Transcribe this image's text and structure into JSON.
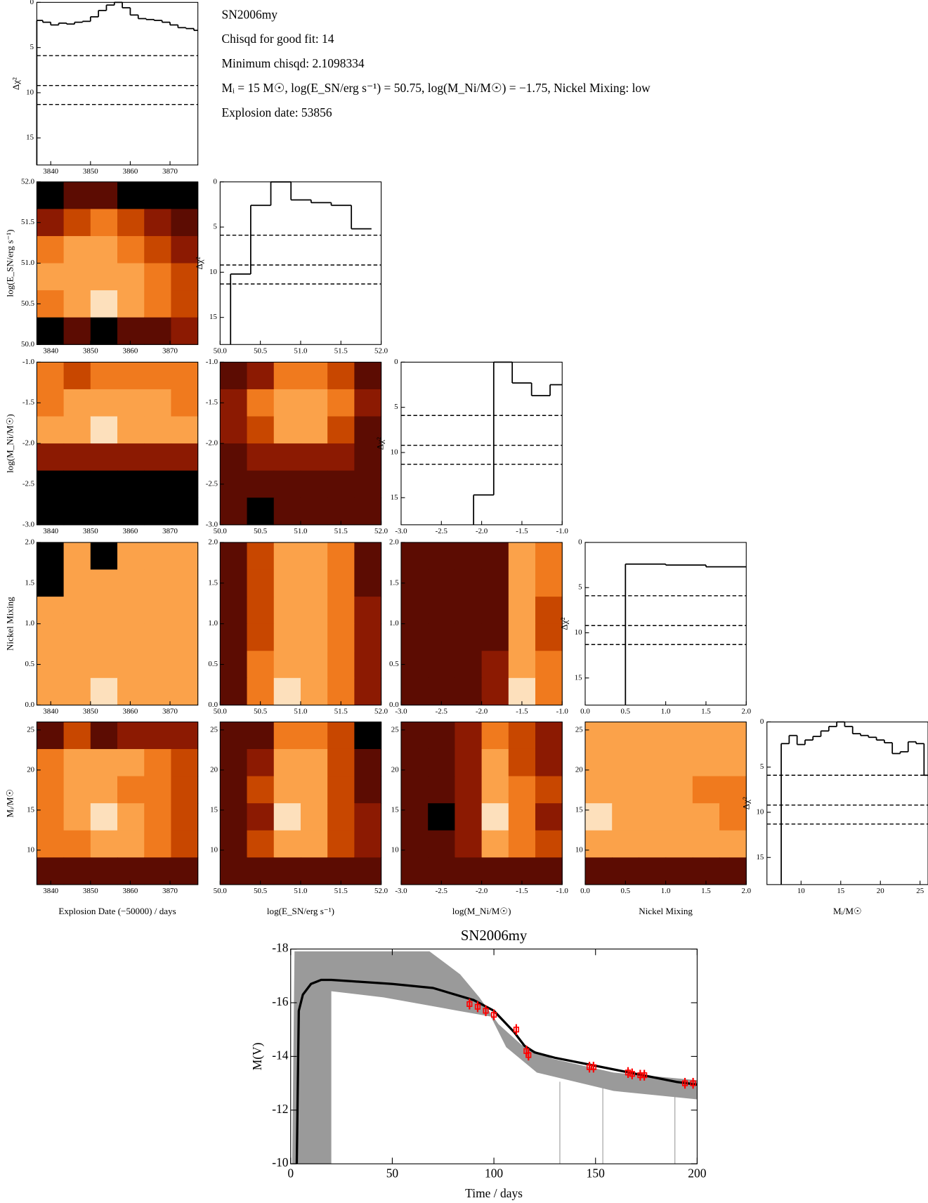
{
  "chart_data": [
    {
      "type": "corner",
      "info_lines": [
        "SN2006my",
        "Chisqd for good fit: 14",
        "Minimum chisqd: 2.1098334",
        "Mᵢ = 15 M☉, log(E_SN/erg s⁻¹) = 50.75, log(M_Ni/M☉) = −1.75, Nickel Mixing: low",
        "Explosion date: 53856"
      ],
      "level_colors": [
        "#000000",
        "#5c0c02",
        "#8c1a02",
        "#c84700",
        "#f07a1e",
        "#fba24a",
        "#fde0bc"
      ],
      "hist_ylabel": "Δχ²",
      "hist_ylim": [
        0,
        18
      ],
      "hist_yticks": [
        0,
        5,
        10,
        15
      ],
      "thresholds": [
        5.9,
        9.2,
        11.3
      ],
      "params": [
        {
          "label": "Explosion Date (−50000) / days",
          "lim": [
            3836.5,
            3877
          ],
          "ticks": [
            3840,
            3850,
            3860,
            3870
          ]
        },
        {
          "label": "log(E_SN/erg s⁻¹)",
          "lim": [
            50,
            52
          ],
          "ticks": [
            {
              "value": 50,
              "label": "50.0"
            },
            {
              "value": 50.5,
              "label": "50.5"
            },
            {
              "value": 51,
              "label": "51.0"
            },
            {
              "value": 51.5,
              "label": "51.5"
            },
            {
              "value": 52,
              "label": "52.0"
            }
          ]
        },
        {
          "label": "log(M_Ni/M☉)",
          "lim": [
            -3,
            -1
          ],
          "ticks": [
            {
              "value": -3,
              "label": "-3.0"
            },
            {
              "value": -2.5,
              "label": "-2.5"
            },
            {
              "value": -2,
              "label": "-2.0"
            },
            {
              "value": -1.5,
              "label": "-1.5"
            },
            {
              "value": -1,
              "label": "-1.0"
            }
          ]
        },
        {
          "label": "Nickel Mixing",
          "lim": [
            0,
            2
          ],
          "ticks": [
            {
              "value": 0,
              "label": "0.0"
            },
            {
              "value": 0.5,
              "label": "0.5"
            },
            {
              "value": 1,
              "label": "1.0"
            },
            {
              "value": 1.5,
              "label": "1.5"
            },
            {
              "value": 2,
              "label": "2.0"
            }
          ]
        },
        {
          "label": "Mᵢ/M☉",
          "lim": [
            5.7,
            26
          ],
          "ticks": [
            10,
            15,
            20,
            25
          ]
        }
      ],
      "hists": [
        {
          "bins": [
            3836.5,
            3838,
            3840,
            3842,
            3844,
            3846,
            3848,
            3850,
            3852,
            3854,
            3856,
            3858,
            3860,
            3862,
            3864,
            3866,
            3868,
            3870,
            3872,
            3874,
            3876,
            3877
          ],
          "values": [
            2.0,
            2.2,
            2.5,
            2.3,
            2.4,
            2.2,
            2.1,
            1.6,
            0.9,
            0.3,
            0,
            0.6,
            1.4,
            1.8,
            1.9,
            2.0,
            2.2,
            2.5,
            2.8,
            2.9,
            3.1
          ]
        },
        {
          "bins": [
            50.13,
            50.38,
            50.63,
            50.88,
            51.13,
            51.38,
            51.63,
            51.88
          ],
          "values": [
            10.2,
            2.6,
            0,
            2.0,
            2.3,
            2.6,
            5.2
          ]
        },
        {
          "bins": [
            -2.1,
            -1.85,
            -1.62,
            -1.38,
            -1.15,
            -1.0
          ],
          "values": [
            14.7,
            0,
            2.3,
            3.7,
            2.5
          ]
        },
        {
          "bins": [
            0.5,
            1.0,
            1.5,
            2.0
          ],
          "values": [
            2.4,
            2.5,
            2.7
          ]
        },
        {
          "bins": [
            7.5,
            8.5,
            9.5,
            10.5,
            11.5,
            12.5,
            13.5,
            14.5,
            15.5,
            16.5,
            17.5,
            18.5,
            19.5,
            20.5,
            21.5,
            22.5,
            23.5,
            24.5,
            25.5,
            26
          ],
          "values": [
            2.4,
            1.5,
            2.5,
            2.0,
            1.6,
            1.0,
            0.5,
            0,
            0.5,
            1.3,
            1.5,
            1.7,
            2.0,
            2.3,
            3.5,
            3.3,
            2.2,
            2.4,
            5.9
          ]
        }
      ],
      "contours": [
        [
          [
            0,
            1,
            1,
            0,
            0,
            0
          ],
          [
            2,
            3,
            4,
            3,
            2,
            1
          ],
          [
            4,
            5,
            5,
            4,
            3,
            2
          ],
          [
            5,
            5,
            5,
            5,
            4,
            3
          ],
          [
            4,
            5,
            6,
            5,
            4,
            3
          ],
          [
            0,
            1,
            0,
            1,
            1,
            2
          ]
        ],
        [
          [
            4,
            3,
            4,
            4,
            4,
            4
          ],
          [
            4,
            5,
            5,
            5,
            5,
            4
          ],
          [
            5,
            5,
            6,
            5,
            5,
            5
          ],
          [
            2,
            2,
            2,
            2,
            2,
            2
          ],
          [
            0,
            0,
            0,
            0,
            0,
            0
          ],
          [
            0,
            0,
            0,
            0,
            0,
            0
          ]
        ],
        [
          [
            1,
            2,
            4,
            4,
            3,
            1
          ],
          [
            2,
            4,
            5,
            5,
            4,
            2
          ],
          [
            2,
            3,
            5,
            5,
            3,
            1
          ],
          [
            1,
            2,
            2,
            2,
            2,
            1
          ],
          [
            1,
            1,
            1,
            1,
            1,
            1
          ],
          [
            1,
            0,
            1,
            1,
            1,
            1
          ]
        ],
        [
          [
            0,
            5,
            0,
            5,
            5,
            5
          ],
          [
            0,
            5,
            5,
            5,
            5,
            5
          ],
          [
            5,
            5,
            5,
            5,
            5,
            5
          ],
          [
            5,
            5,
            5,
            5,
            5,
            5
          ],
          [
            5,
            5,
            5,
            5,
            5,
            5
          ],
          [
            5,
            5,
            6,
            5,
            5,
            5
          ]
        ],
        [
          [
            1,
            3,
            5,
            5,
            4,
            1
          ],
          [
            1,
            3,
            5,
            5,
            4,
            1
          ],
          [
            1,
            3,
            5,
            5,
            4,
            2
          ],
          [
            1,
            3,
            5,
            5,
            4,
            2
          ],
          [
            1,
            4,
            5,
            5,
            4,
            2
          ],
          [
            1,
            4,
            6,
            5,
            4,
            2
          ]
        ],
        [
          [
            1,
            1,
            1,
            1,
            5,
            4
          ],
          [
            1,
            1,
            1,
            1,
            5,
            4
          ],
          [
            1,
            1,
            1,
            1,
            5,
            3
          ],
          [
            1,
            1,
            1,
            1,
            5,
            3
          ],
          [
            1,
            1,
            1,
            2,
            5,
            4
          ],
          [
            1,
            1,
            1,
            2,
            6,
            4
          ]
        ],
        [
          [
            1,
            3,
            1,
            2,
            2,
            2
          ],
          [
            4,
            5,
            5,
            5,
            4,
            3
          ],
          [
            4,
            5,
            5,
            4,
            4,
            3
          ],
          [
            4,
            5,
            6,
            5,
            4,
            3
          ],
          [
            4,
            4,
            5,
            5,
            4,
            3
          ],
          [
            1,
            1,
            1,
            1,
            1,
            1
          ]
        ],
        [
          [
            1,
            1,
            4,
            4,
            3,
            0
          ],
          [
            1,
            2,
            5,
            5,
            3,
            1
          ],
          [
            1,
            3,
            5,
            5,
            3,
            1
          ],
          [
            1,
            2,
            6,
            5,
            3,
            2
          ],
          [
            1,
            3,
            5,
            5,
            3,
            2
          ],
          [
            1,
            1,
            1,
            1,
            1,
            1
          ]
        ],
        [
          [
            1,
            1,
            2,
            4,
            3,
            2
          ],
          [
            1,
            1,
            2,
            5,
            3,
            2
          ],
          [
            1,
            1,
            2,
            5,
            4,
            3
          ],
          [
            1,
            0,
            2,
            6,
            4,
            2
          ],
          [
            1,
            1,
            2,
            5,
            4,
            3
          ],
          [
            1,
            1,
            1,
            1,
            1,
            1
          ]
        ],
        [
          [
            5,
            5,
            5,
            5,
            5,
            5
          ],
          [
            5,
            5,
            5,
            5,
            5,
            5
          ],
          [
            5,
            5,
            5,
            5,
            4,
            4
          ],
          [
            6,
            5,
            5,
            5,
            5,
            4
          ],
          [
            5,
            5,
            5,
            5,
            5,
            5
          ],
          [
            1,
            1,
            1,
            1,
            1,
            1
          ]
        ]
      ]
    },
    {
      "type": "line",
      "title": "SN2006my",
      "x_label": "Time / days",
      "y_label": "M(V)",
      "xlim": [
        0,
        200
      ],
      "ylim": [
        -10,
        -18
      ],
      "xticks": [
        0,
        50,
        100,
        150,
        200
      ],
      "yticks": [
        -18,
        -16,
        -14,
        -12,
        -10
      ],
      "model": {
        "color": "#000000",
        "x": [
          3,
          4,
          6,
          10,
          15,
          20,
          30,
          50,
          70,
          90,
          100,
          110,
          115,
          120,
          130,
          150,
          170,
          190,
          200
        ],
        "y": [
          -10,
          -15.7,
          -16.3,
          -16.7,
          -16.85,
          -16.85,
          -16.8,
          -16.7,
          -16.55,
          -16.1,
          -15.7,
          -14.9,
          -14.4,
          -14.15,
          -13.95,
          -13.65,
          -13.35,
          -13.05,
          -12.95
        ]
      },
      "observations": {
        "color": "#ff0000",
        "x": [
          88,
          92,
          96,
          100,
          111,
          116,
          117,
          147,
          149,
          166,
          168,
          172,
          174,
          194,
          198
        ],
        "y": [
          -15.95,
          -15.85,
          -15.7,
          -15.55,
          -15.0,
          -14.2,
          -14.05,
          -13.6,
          -13.6,
          -13.4,
          -13.35,
          -13.3,
          -13.3,
          -13.0,
          -13.0
        ],
        "err": [
          0.2,
          0.2,
          0.2,
          0.2,
          0.2,
          0.2,
          0.2,
          0.2,
          0.2,
          0.2,
          0.2,
          0.2,
          0.2,
          0.2,
          0.2
        ]
      }
    }
  ]
}
